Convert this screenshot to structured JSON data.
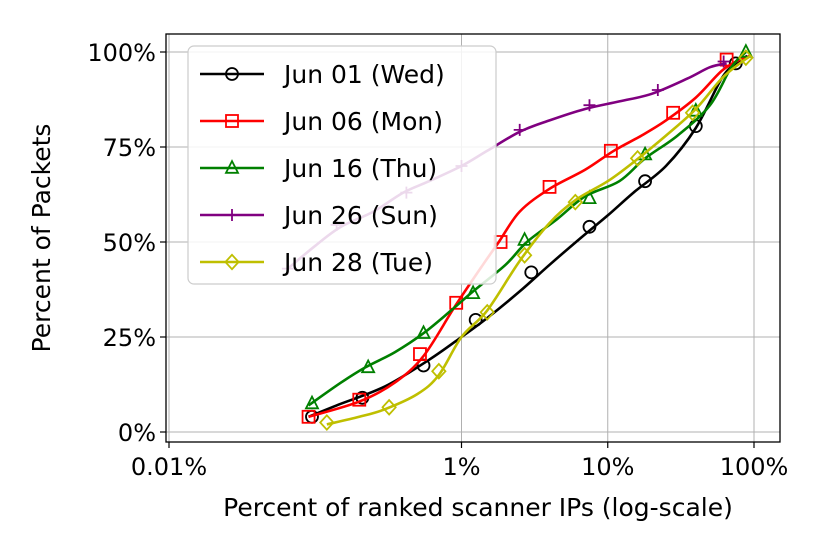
{
  "chart_data": {
    "type": "line",
    "title": "",
    "xlabel": "Percent of ranked scanner IPs (log-scale)",
    "ylabel": "Percent of Packets",
    "x_scale": "log",
    "xlim": [
      0.01,
      100
    ],
    "ylim": [
      0,
      100
    ],
    "x_ticks": [
      {
        "value": 0.01,
        "label": "0.01%"
      },
      {
        "value": 1,
        "label": "1%"
      },
      {
        "value": 10,
        "label": "10%"
      },
      {
        "value": 100,
        "label": "100%"
      }
    ],
    "y_ticks": [
      {
        "value": 0,
        "label": "0%"
      },
      {
        "value": 25,
        "label": "25%"
      },
      {
        "value": 50,
        "label": "50%"
      },
      {
        "value": 75,
        "label": "75%"
      },
      {
        "value": 100,
        "label": "100%"
      }
    ],
    "grid": true,
    "legend_position": "top-left",
    "series": [
      {
        "name": "Jun 01 (Wed)",
        "color": "#000000",
        "marker": "circle",
        "x": [
          0.09,
          0.14,
          0.3,
          0.6,
          1.0,
          1.5,
          2.5,
          4.0,
          6.5,
          10,
          15,
          25,
          40,
          60,
          75,
          90
        ],
        "y": [
          4,
          7,
          12,
          19,
          25,
          30,
          37,
          44,
          51,
          57,
          63,
          70,
          80,
          93,
          97,
          99
        ],
        "markers": [
          [
            0.095,
            4
          ],
          [
            0.21,
            9
          ],
          [
            0.55,
            17.5
          ],
          [
            1.25,
            29.5
          ],
          [
            3.0,
            42
          ],
          [
            7.5,
            54
          ],
          [
            18,
            66
          ],
          [
            40,
            80.5
          ],
          [
            75,
            97
          ]
        ]
      },
      {
        "name": "Jun 06 (Mon)",
        "color": "#ff0000",
        "marker": "square",
        "x": [
          0.09,
          0.2,
          0.35,
          0.55,
          0.9,
          1.4,
          1.8,
          2.5,
          4.0,
          7,
          11,
          17,
          25,
          40,
          60,
          80,
          95
        ],
        "y": [
          4,
          8,
          13,
          20,
          33,
          44,
          50,
          58,
          64,
          69,
          74,
          78,
          82,
          88,
          95,
          98,
          99
        ],
        "markers": [
          [
            0.09,
            4
          ],
          [
            0.2,
            8.5
          ],
          [
            0.52,
            20.5
          ],
          [
            0.92,
            34
          ],
          [
            1.85,
            50
          ],
          [
            4.0,
            64.5
          ],
          [
            10.5,
            74
          ],
          [
            28,
            84
          ],
          [
            65,
            98
          ]
        ]
      },
      {
        "name": "Jun 16 (Thu)",
        "color": "#008000",
        "marker": "triangle",
        "x": [
          0.09,
          0.15,
          0.22,
          0.35,
          0.55,
          0.85,
          1.2,
          2.0,
          2.8,
          4.5,
          7,
          12,
          18,
          30,
          50,
          70,
          88
        ],
        "y": [
          7,
          13,
          17,
          21,
          26,
          32,
          37,
          44,
          50,
          56,
          62,
          66,
          72,
          78,
          86,
          96,
          100
        ],
        "markers": [
          [
            0.095,
            7.5
          ],
          [
            0.23,
            17
          ],
          [
            0.55,
            26
          ],
          [
            1.2,
            36.5
          ],
          [
            2.7,
            50.5
          ],
          [
            7.5,
            61.5
          ],
          [
            18,
            73
          ],
          [
            40,
            84.5
          ],
          [
            88,
            100
          ]
        ]
      },
      {
        "name": "Jun 26 (Sun)",
        "color": "#800080",
        "marker": "plus",
        "x": [
          0.065,
          0.1,
          0.15,
          0.25,
          0.4,
          0.6,
          1.0,
          1.5,
          2.5,
          4.0,
          7,
          12,
          20,
          35,
          50,
          65
        ],
        "y": [
          43,
          49,
          54,
          58,
          63,
          66,
          70,
          74,
          79,
          82,
          85,
          87,
          89,
          93,
          96,
          97
        ],
        "markers": [
          [
            0.065,
            43
          ],
          [
            0.14,
            54.5
          ],
          [
            0.42,
            63
          ],
          [
            1.0,
            70
          ],
          [
            2.5,
            79.5
          ],
          [
            7.5,
            86
          ],
          [
            22,
            90
          ],
          [
            62,
            97.5
          ]
        ]
      },
      {
        "name": "Jun 28 (Tue)",
        "color": "#bfbf00",
        "marker": "diamond",
        "x": [
          0.12,
          0.2,
          0.3,
          0.5,
          0.7,
          1.0,
          1.5,
          2.5,
          4.0,
          6.0,
          10,
          15,
          25,
          40,
          60,
          80,
          95
        ],
        "y": [
          2,
          4,
          6,
          10,
          15,
          25,
          32,
          45,
          55,
          61,
          66,
          71,
          78,
          85,
          93,
          97,
          99
        ],
        "markers": [
          [
            0.12,
            2.5
          ],
          [
            0.32,
            6.5
          ],
          [
            0.7,
            16
          ],
          [
            1.5,
            31.5
          ],
          [
            2.7,
            46.5
          ],
          [
            6.0,
            60.5
          ],
          [
            16,
            72
          ],
          [
            38,
            84
          ],
          [
            88,
            98.5
          ]
        ]
      }
    ]
  }
}
